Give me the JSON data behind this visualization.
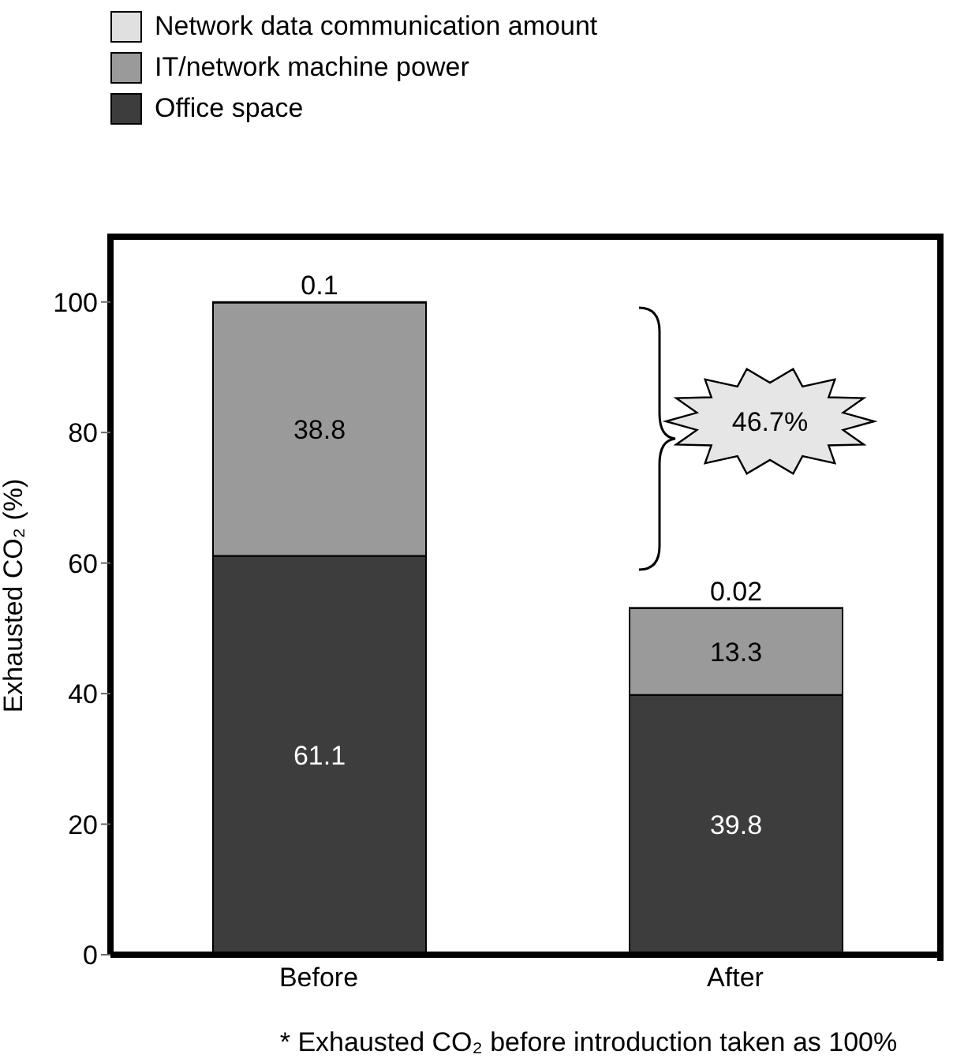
{
  "chart_data": {
    "type": "bar",
    "stacked": true,
    "categories": [
      "Before",
      "After"
    ],
    "series": [
      {
        "name": "Office space",
        "color": "#3d3d3d",
        "values": [
          61.1,
          39.8
        ]
      },
      {
        "name": "IT/network machine power",
        "color": "#9a9a9a",
        "values": [
          38.8,
          13.3
        ]
      },
      {
        "name": "Network data communication amount",
        "color": "#e0e0e0",
        "values": [
          0.1,
          0.02
        ]
      }
    ],
    "ylabel": "Exhausted CO₂ (%)",
    "ylim": [
      0,
      110
    ],
    "yticks": [
      0,
      20,
      40,
      60,
      80,
      100
    ],
    "data_labels": true,
    "legend": "top left",
    "grid": false,
    "annotations": [
      "46.7%",
      "* Exhausted CO₂ before introduction taken as 100%"
    ]
  }
}
